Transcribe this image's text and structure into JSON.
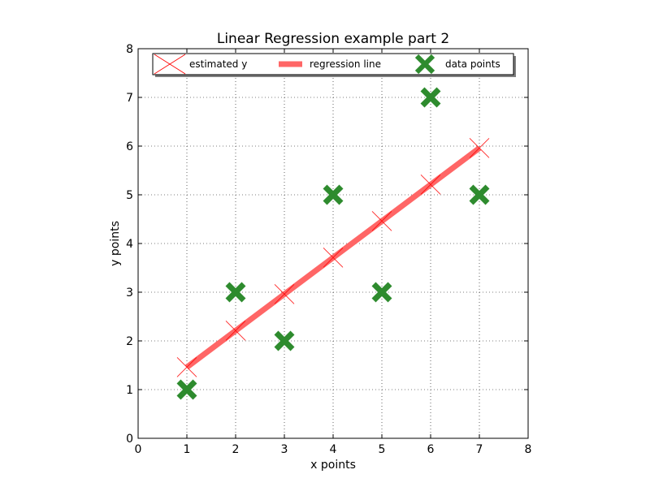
{
  "chart_data": {
    "type": "scatter",
    "title": "Linear Regression  example part 2",
    "xlabel": "x points",
    "ylabel": "y points",
    "xlim": [
      0,
      8
    ],
    "ylim": [
      0,
      8
    ],
    "xticks": [
      "0",
      "1",
      "2",
      "3",
      "4",
      "5",
      "6",
      "7",
      "8"
    ],
    "yticks": [
      "0",
      "1",
      "2",
      "3",
      "4",
      "5",
      "6",
      "7",
      "8"
    ],
    "grid": true,
    "legend_position": "top",
    "series": [
      {
        "name": "estimated y",
        "kind": "marker-x",
        "color": "#ff0000",
        "x": [
          1,
          2,
          3,
          4,
          5,
          6,
          7
        ],
        "y": [
          1.46,
          2.21,
          2.96,
          3.71,
          4.46,
          5.21,
          5.96
        ]
      },
      {
        "name": "regression line",
        "kind": "line",
        "color": "#ff6666",
        "x": [
          1,
          7
        ],
        "y": [
          1.46,
          5.96
        ]
      },
      {
        "name": "data points",
        "kind": "marker-X",
        "color": "#2e8b2e",
        "x": [
          1,
          2,
          3,
          4,
          5,
          6,
          7
        ],
        "y": [
          1,
          3,
          2,
          5,
          3,
          7,
          5
        ]
      }
    ]
  }
}
